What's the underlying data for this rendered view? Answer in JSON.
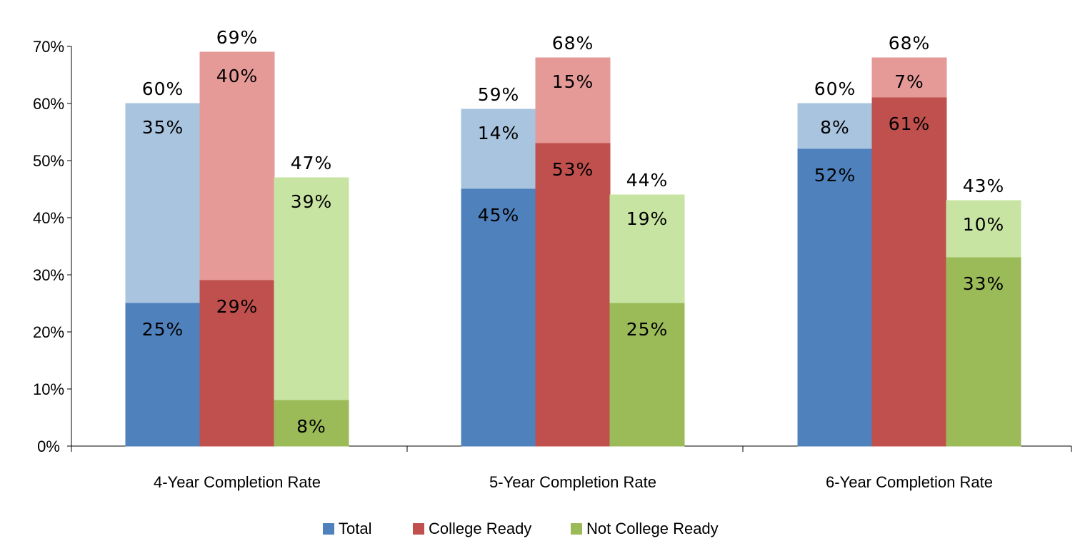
{
  "chart_data": {
    "type": "bar",
    "subtype": "overlapping stacked bars",
    "categories": [
      "4-Year Completion Rate",
      "5-Year Completion Rate",
      "6-Year Completion Rate"
    ],
    "ylim": [
      0,
      70
    ],
    "yticks": [
      "0%",
      "10%",
      "20%",
      "30%",
      "40%",
      "50%",
      "60%",
      "70%"
    ],
    "grid": false,
    "legend_position": "bottom",
    "series": [
      {
        "name": "Total",
        "color": "#4f81bd",
        "light_color": "#a9c4de",
        "base": [
          25,
          45,
          52
        ],
        "added": [
          35,
          14,
          8
        ],
        "total": [
          60,
          59,
          60
        ],
        "base_labels": [
          "25%",
          "45%",
          "52%"
        ],
        "added_labels": [
          "35%",
          "14%",
          "8%"
        ],
        "total_labels": [
          "60%",
          "59%",
          "60%"
        ]
      },
      {
        "name": "College Ready",
        "color": "#c0504d",
        "light_color": "#e59a98",
        "base": [
          29,
          53,
          61
        ],
        "added": [
          40,
          15,
          7
        ],
        "total": [
          69,
          68,
          68
        ],
        "base_labels": [
          "29%",
          "53%",
          "61%"
        ],
        "added_labels": [
          "40%",
          "15%",
          "7%"
        ],
        "total_labels": [
          "69%",
          "68%",
          "68%"
        ]
      },
      {
        "name": "Not College Ready",
        "color": "#9bbb59",
        "light_color": "#c8e4a3",
        "base": [
          8,
          25,
          33
        ],
        "added": [
          39,
          19,
          10
        ],
        "total": [
          47,
          44,
          43
        ],
        "base_labels": [
          "8%",
          "25%",
          "33%"
        ],
        "added_labels": [
          "39%",
          "19%",
          "10%"
        ],
        "total_labels": [
          "47%",
          "44%",
          "43%"
        ]
      }
    ]
  }
}
